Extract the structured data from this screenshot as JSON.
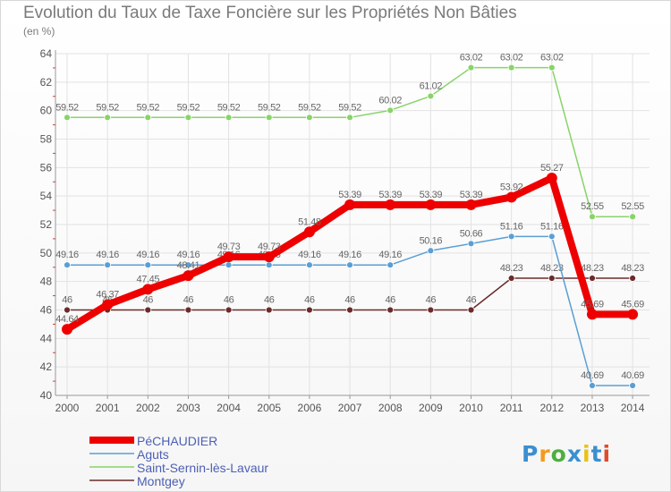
{
  "chart_data": {
    "type": "line",
    "title": "Evolution du Taux de Taxe Foncière sur les Propriétés Non Bâties",
    "ylabel": "(en %)",
    "xlabel": "",
    "ylim": [
      40,
      64
    ],
    "yticks": [
      40,
      42,
      44,
      46,
      48,
      50,
      52,
      54,
      56,
      58,
      60,
      62,
      64
    ],
    "categories": [
      "2000",
      "2001",
      "2002",
      "2003",
      "2004",
      "2005",
      "2006",
      "2007",
      "2008",
      "2009",
      "2010",
      "2011",
      "2012",
      "2013",
      "2014"
    ],
    "series": [
      {
        "name": "Montgey",
        "color": "#6b2b2b",
        "values": [
          46,
          46,
          46,
          46,
          46,
          46,
          46,
          46,
          46,
          46,
          46,
          48.23,
          48.23,
          48.23,
          48.23
        ],
        "labels": [
          "46",
          "46",
          "46",
          "46",
          "46",
          "46",
          "46",
          "46",
          "46",
          "46",
          "46",
          "48.23",
          "48.23",
          "48.23",
          "48.23"
        ]
      },
      {
        "name": "Saint-Sernin-lès-Lavaur",
        "color": "#88d468",
        "values": [
          59.52,
          59.52,
          59.52,
          59.52,
          59.52,
          59.52,
          59.52,
          59.52,
          60.02,
          61.02,
          63.02,
          63.02,
          63.02,
          52.55,
          52.55
        ],
        "labels": [
          "59.52",
          "59.52",
          "59.52",
          "59.52",
          "59.52",
          "59.52",
          "59.52",
          "59.52",
          "60.02",
          "61.02",
          "63.02",
          "63.02",
          "63.02",
          "52.55",
          "52.55"
        ]
      },
      {
        "name": "Aguts",
        "color": "#5a9fd4",
        "values": [
          49.16,
          49.16,
          49.16,
          49.16,
          49.16,
          49.16,
          49.16,
          49.16,
          49.16,
          50.16,
          50.66,
          51.16,
          51.16,
          40.69,
          40.69
        ],
        "labels": [
          "49.16",
          "49.16",
          "49.16",
          "49.16",
          "49.16",
          "49.16",
          "49.16",
          "49.16",
          "49.16",
          "50.16",
          "50.66",
          "51.16",
          "51.16",
          "40.69",
          "40.69"
        ]
      },
      {
        "name": "PéCHAUDIER",
        "color": "#ee0000",
        "values": [
          44.64,
          46.37,
          47.45,
          48.41,
          49.73,
          49.73,
          51.48,
          53.39,
          53.39,
          53.39,
          53.39,
          53.92,
          55.27,
          45.69,
          45.69
        ],
        "labels": [
          "44.64",
          "46.37",
          "47.45",
          "48.41",
          "49.73",
          "49.73",
          "51.48",
          "53.39",
          "53.39",
          "53.39",
          "53.39",
          "53.92",
          "55.27",
          "45.69",
          "45.69"
        ]
      }
    ],
    "legend": {
      "position": "bottom-left",
      "entries": [
        "PéCHAUDIER",
        "Aguts",
        "Saint-Sernin-lès-Lavaur",
        "Montgey"
      ]
    }
  },
  "logo": {
    "letters": [
      "P",
      "r",
      "o",
      "x",
      "i",
      "t",
      "i"
    ],
    "colors": [
      "#3a8fd0",
      "#f29b1e",
      "#4caf3e",
      "#3a8fd0",
      "#e8c21a",
      "#3a8fd0",
      "#e04b2a"
    ]
  }
}
